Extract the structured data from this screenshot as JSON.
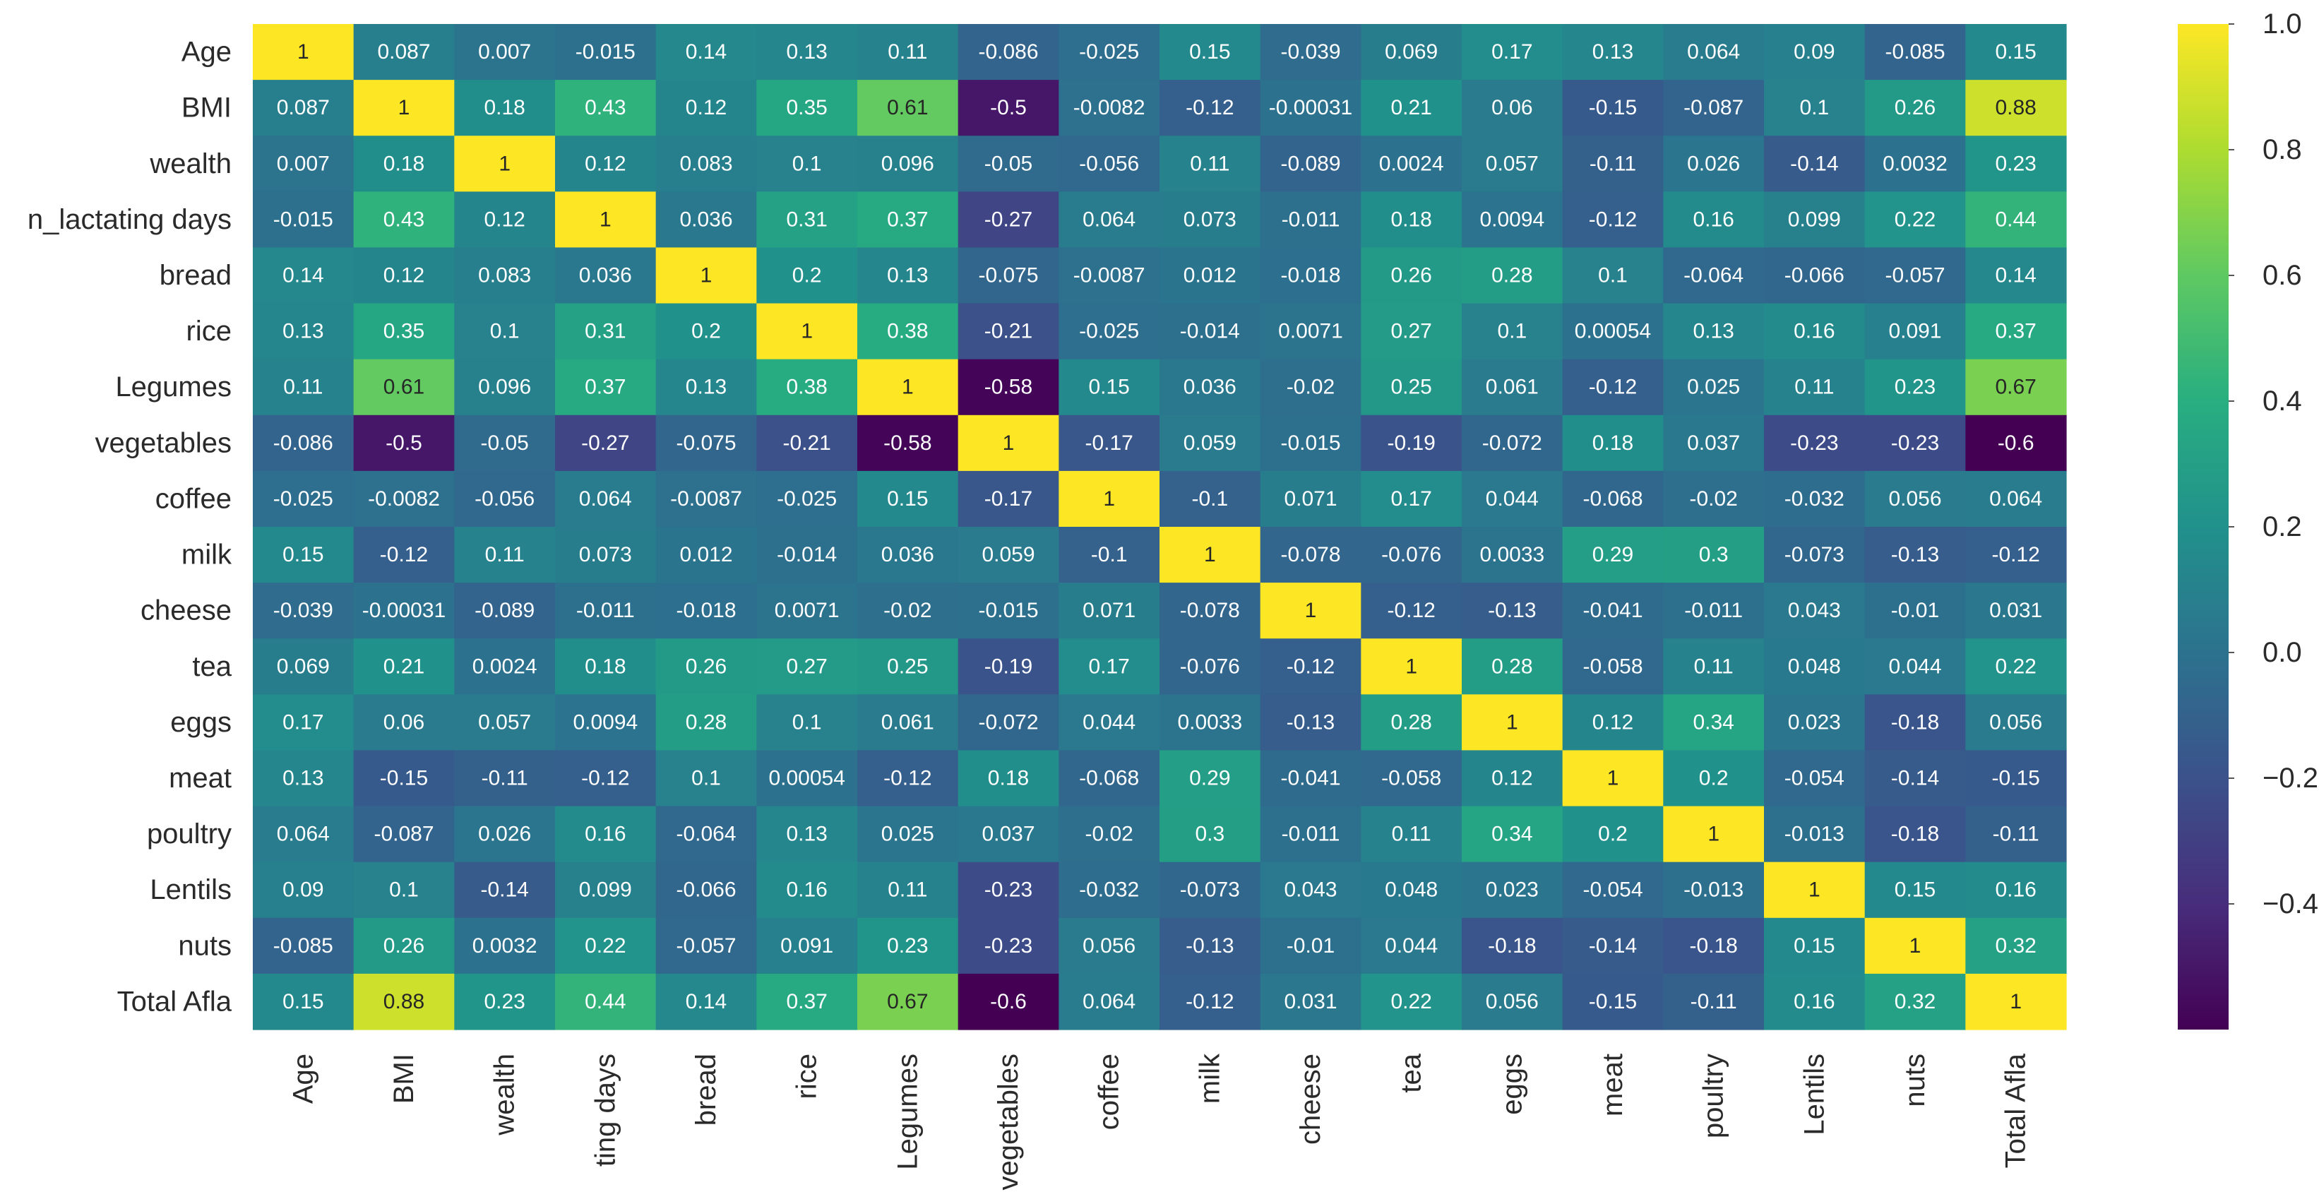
{
  "chart_data": {
    "type": "heatmap",
    "title": "",
    "xlabel": "",
    "ylabel": "",
    "colormap": "viridis",
    "vmin": -0.6,
    "vmax": 1.0,
    "colorbar_ticks": [
      "1.0",
      "0.8",
      "0.6",
      "0.4",
      "0.2",
      "0.0",
      "−0.2",
      "−0.4"
    ],
    "colorbar_tick_values": [
      1.0,
      0.8,
      0.6,
      0.4,
      0.2,
      0.0,
      -0.2,
      -0.4
    ],
    "row_labels": [
      "Age",
      "BMI",
      "wealth",
      "n_lactating days",
      "bread",
      "rice",
      "Legumes",
      "vegetables",
      "coffee",
      "milk",
      "cheese",
      "tea",
      "eggs",
      "meat",
      "poultry",
      "Lentils",
      "nuts",
      "Total Afla"
    ],
    "col_labels": [
      "Age",
      "BMI",
      "wealth",
      "ting days",
      "bread",
      "rice",
      "Legumes",
      "vegetables",
      "coffee",
      "milk",
      "cheese",
      "tea",
      "eggs",
      "meat",
      "poultry",
      "Lentils",
      "nuts",
      "Total Afla"
    ],
    "annotations": [
      [
        "1",
        "0.087",
        "0.007",
        "-0.015",
        "0.14",
        "0.13",
        "0.11",
        "-0.086",
        "-0.025",
        "0.15",
        "-0.039",
        "0.069",
        "0.17",
        "0.13",
        "0.064",
        "0.09",
        "-0.085",
        "0.15"
      ],
      [
        "0.087",
        "1",
        "0.18",
        "0.43",
        "0.12",
        "0.35",
        "0.61",
        "-0.5",
        "-0.0082",
        "-0.12",
        "-0.00031",
        "0.21",
        "0.06",
        "-0.15",
        "-0.087",
        "0.1",
        "0.26",
        "0.88"
      ],
      [
        "0.007",
        "0.18",
        "1",
        "0.12",
        "0.083",
        "0.1",
        "0.096",
        "-0.05",
        "-0.056",
        "0.11",
        "-0.089",
        "0.0024",
        "0.057",
        "-0.11",
        "0.026",
        "-0.14",
        "0.0032",
        "0.23"
      ],
      [
        "-0.015",
        "0.43",
        "0.12",
        "1",
        "0.036",
        "0.31",
        "0.37",
        "-0.27",
        "0.064",
        "0.073",
        "-0.011",
        "0.18",
        "0.0094",
        "-0.12",
        "0.16",
        "0.099",
        "0.22",
        "0.44"
      ],
      [
        "0.14",
        "0.12",
        "0.083",
        "0.036",
        "1",
        "0.2",
        "0.13",
        "-0.075",
        "-0.0087",
        "0.012",
        "-0.018",
        "0.26",
        "0.28",
        "0.1",
        "-0.064",
        "-0.066",
        "-0.057",
        "0.14"
      ],
      [
        "0.13",
        "0.35",
        "0.1",
        "0.31",
        "0.2",
        "1",
        "0.38",
        "-0.21",
        "-0.025",
        "-0.014",
        "0.0071",
        "0.27",
        "0.1",
        "0.00054",
        "0.13",
        "0.16",
        "0.091",
        "0.37"
      ],
      [
        "0.11",
        "0.61",
        "0.096",
        "0.37",
        "0.13",
        "0.38",
        "1",
        "-0.58",
        "0.15",
        "0.036",
        "-0.02",
        "0.25",
        "0.061",
        "-0.12",
        "0.025",
        "0.11",
        "0.23",
        "0.67"
      ],
      [
        "-0.086",
        "-0.5",
        "-0.05",
        "-0.27",
        "-0.075",
        "-0.21",
        "-0.58",
        "1",
        "-0.17",
        "0.059",
        "-0.015",
        "-0.19",
        "-0.072",
        "0.18",
        "0.037",
        "-0.23",
        "-0.23",
        "-0.6"
      ],
      [
        "-0.025",
        "-0.0082",
        "-0.056",
        "0.064",
        "-0.0087",
        "-0.025",
        "0.15",
        "-0.17",
        "1",
        "-0.1",
        "0.071",
        "0.17",
        "0.044",
        "-0.068",
        "-0.02",
        "-0.032",
        "0.056",
        "0.064"
      ],
      [
        "0.15",
        "-0.12",
        "0.11",
        "0.073",
        "0.012",
        "-0.014",
        "0.036",
        "0.059",
        "-0.1",
        "1",
        "-0.078",
        "-0.076",
        "0.0033",
        "0.29",
        "0.3",
        "-0.073",
        "-0.13",
        "-0.12"
      ],
      [
        "-0.039",
        "-0.00031",
        "-0.089",
        "-0.011",
        "-0.018",
        "0.0071",
        "-0.02",
        "-0.015",
        "0.071",
        "-0.078",
        "1",
        "-0.12",
        "-0.13",
        "-0.041",
        "-0.011",
        "0.043",
        "-0.01",
        "0.031"
      ],
      [
        "0.069",
        "0.21",
        "0.0024",
        "0.18",
        "0.26",
        "0.27",
        "0.25",
        "-0.19",
        "0.17",
        "-0.076",
        "-0.12",
        "1",
        "0.28",
        "-0.058",
        "0.11",
        "0.048",
        "0.044",
        "0.22"
      ],
      [
        "0.17",
        "0.06",
        "0.057",
        "0.0094",
        "0.28",
        "0.1",
        "0.061",
        "-0.072",
        "0.044",
        "0.0033",
        "-0.13",
        "0.28",
        "1",
        "0.12",
        "0.34",
        "0.023",
        "-0.18",
        "0.056"
      ],
      [
        "0.13",
        "-0.15",
        "-0.11",
        "-0.12",
        "0.1",
        "0.00054",
        "-0.12",
        "0.18",
        "-0.068",
        "0.29",
        "-0.041",
        "-0.058",
        "0.12",
        "1",
        "0.2",
        "-0.054",
        "-0.14",
        "-0.15"
      ],
      [
        "0.064",
        "-0.087",
        "0.026",
        "0.16",
        "-0.064",
        "0.13",
        "0.025",
        "0.037",
        "-0.02",
        "0.3",
        "-0.011",
        "0.11",
        "0.34",
        "0.2",
        "1",
        "-0.013",
        "-0.18",
        "-0.11"
      ],
      [
        "0.09",
        "0.1",
        "-0.14",
        "0.099",
        "-0.066",
        "0.16",
        "0.11",
        "-0.23",
        "-0.032",
        "-0.073",
        "0.043",
        "0.048",
        "0.023",
        "-0.054",
        "-0.013",
        "1",
        "0.15",
        "0.16"
      ],
      [
        "-0.085",
        "0.26",
        "0.0032",
        "0.22",
        "-0.057",
        "0.091",
        "0.23",
        "-0.23",
        "0.056",
        "-0.13",
        "-0.01",
        "0.044",
        "-0.18",
        "-0.14",
        "-0.18",
        "0.15",
        "1",
        "0.32"
      ],
      [
        "0.15",
        "0.88",
        "0.23",
        "0.44",
        "0.14",
        "0.37",
        "0.67",
        "-0.6",
        "0.064",
        "-0.12",
        "0.031",
        "0.22",
        "0.056",
        "-0.15",
        "-0.11",
        "0.16",
        "0.32",
        "1"
      ]
    ]
  }
}
